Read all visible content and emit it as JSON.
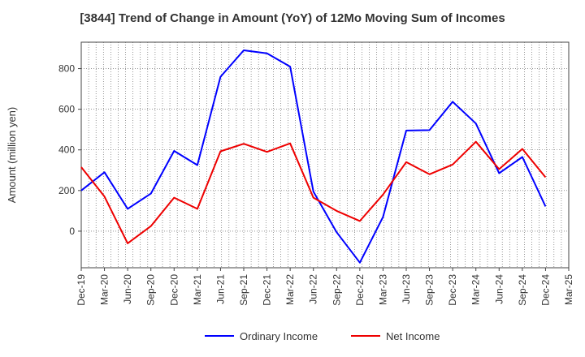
{
  "chart_data": {
    "type": "line",
    "title": "[3844]  Trend of Change in Amount (YoY) of 12Mo Moving Sum of Incomes",
    "ylabel": "Amount (million yen)",
    "xlabel": "",
    "ylim": [
      -180,
      930
    ],
    "yticks": [
      0,
      200,
      400,
      600,
      800
    ],
    "x_ticks": [
      "Dec-19",
      "Mar-20",
      "Jun-20",
      "Sep-20",
      "Dec-20",
      "Mar-21",
      "Jun-21",
      "Sep-21",
      "Dec-21",
      "Mar-22",
      "Jun-22",
      "Sep-22",
      "Dec-22",
      "Mar-23",
      "Jun-23",
      "Sep-23",
      "Dec-23",
      "Mar-24",
      "Jun-24",
      "Sep-24",
      "Dec-24",
      "Mar-25"
    ],
    "grid": true,
    "legend_position": "bottom",
    "series": [
      {
        "name": "Ordinary Income",
        "color": "#0000ff",
        "values": [
          200,
          290,
          110,
          185,
          395,
          325,
          760,
          890,
          875,
          810,
          195,
          -5,
          -155,
          70,
          495,
          497,
          637,
          530,
          285,
          365,
          122,
          null
        ]
      },
      {
        "name": "Net Income",
        "color": "#ee0000",
        "values": [
          315,
          170,
          -60,
          25,
          165,
          110,
          393,
          430,
          390,
          432,
          165,
          100,
          50,
          180,
          340,
          280,
          328,
          440,
          305,
          405,
          265,
          null
        ]
      }
    ]
  }
}
